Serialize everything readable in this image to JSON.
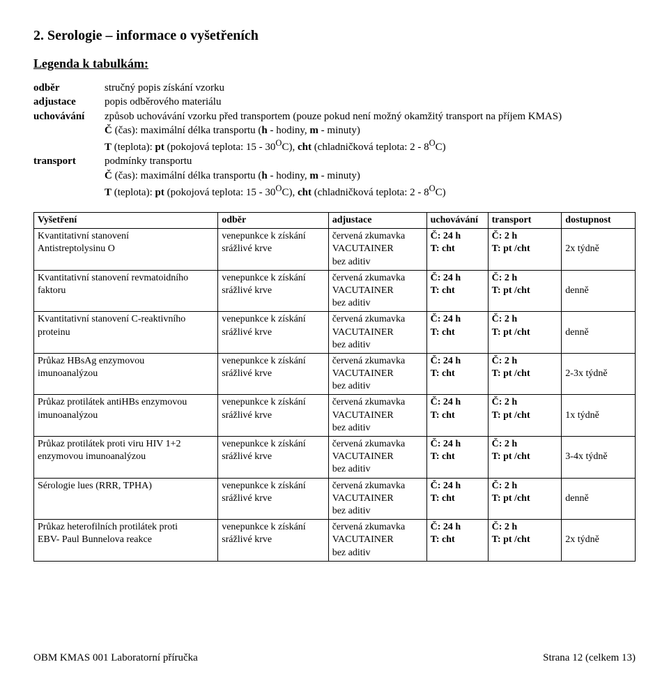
{
  "heading": "2.  Serologie – informace o vyšetřeních",
  "legend_title": "Legenda k tabulkám:",
  "legend": {
    "odber": {
      "key": "odběr",
      "val": "stručný popis získání vzorku"
    },
    "adjustace": {
      "key": "adjustace",
      "val": "popis odběrového materiálu"
    },
    "uchovavani": {
      "key": "uchovávání",
      "val": "způsob uchovávání vzorku před transportem (pouze pokud není možný okamžitý transport na příjem KMAS)"
    },
    "uch_line2_prefix": "Č",
    "uch_line2_mid": " (čas): maximální délka transportu (",
    "uch_line2_h": "h",
    "uch_line2_hod": " - hodiny, ",
    "uch_line2_m": "m",
    "uch_line2_min": " - minuty)",
    "uch_line3_prefix": "T",
    "uch_line3_mid": " (teplota): ",
    "uch_line3_pt": "pt",
    "uch_line3_pok": " (pokojová teplota: 15 - 30",
    "uch_line3_sup": "O",
    "uch_line3_c": "C), ",
    "uch_line3_cht": "cht",
    "uch_line3_chl": " (chladničková teplota: 2 - 8",
    "uch_line3_c2": "C)",
    "transport": {
      "key": "transport",
      "val": "podmínky transportu"
    }
  },
  "table": {
    "headers": {
      "vysetreni": "Vyšetření",
      "odber": "odběr",
      "adjustace": "adjustace",
      "uchovavani": "uchovávání",
      "transport": "transport",
      "dostupnost": "dostupnost"
    },
    "odber_l1": "venepunkce k získání",
    "odber_l2": "srážlivé krve",
    "adj_l1": "červená zkumavka",
    "adj_l2": "VACUTAINER",
    "adj_l3": "bez aditiv",
    "uch_l1": "Č: 24 h",
    "uch_l2": "T: cht",
    "tra_l1": "Č: 2 h",
    "tra_l2": "T: pt /cht",
    "rows": [
      {
        "vys_l1": "Kvantitativní stanovení",
        "vys_l2": "Antistreptolysinu O",
        "dost": "2x týdně"
      },
      {
        "vys_l1": "Kvantitativní stanovení revmatoidního",
        "vys_l2": "faktoru",
        "dost": "denně"
      },
      {
        "vys_l1": "Kvantitativní stanovení C-reaktivního",
        "vys_l2": "proteinu",
        "dost": "denně"
      },
      {
        "vys_l1": "Průkaz HBsAg enzymovou",
        "vys_l2": "imunoanalýzou",
        "dost": "2-3x týdně"
      },
      {
        "vys_l1": "Průkaz protilátek antiHBs enzymovou",
        "vys_l2": "imunoanalýzou",
        "dost": "1x týdně"
      },
      {
        "vys_l1": "Průkaz protilátek proti viru HIV 1+2",
        "vys_l2": "enzymovou imunoanalýzou",
        "dost": "3-4x týdně"
      },
      {
        "vys_l1": "Sérologie lues (RRR, TPHA)",
        "vys_l2": "",
        "dost": "denně"
      },
      {
        "vys_l1": "Průkaz heterofilních protilátek proti",
        "vys_l2": "EBV- Paul Bunnelova reakce",
        "dost": "2x týdně"
      }
    ]
  },
  "footer": {
    "left": "OBM KMAS 001 Laboratorní příručka",
    "right": "Strana 12 (celkem 13)"
  }
}
